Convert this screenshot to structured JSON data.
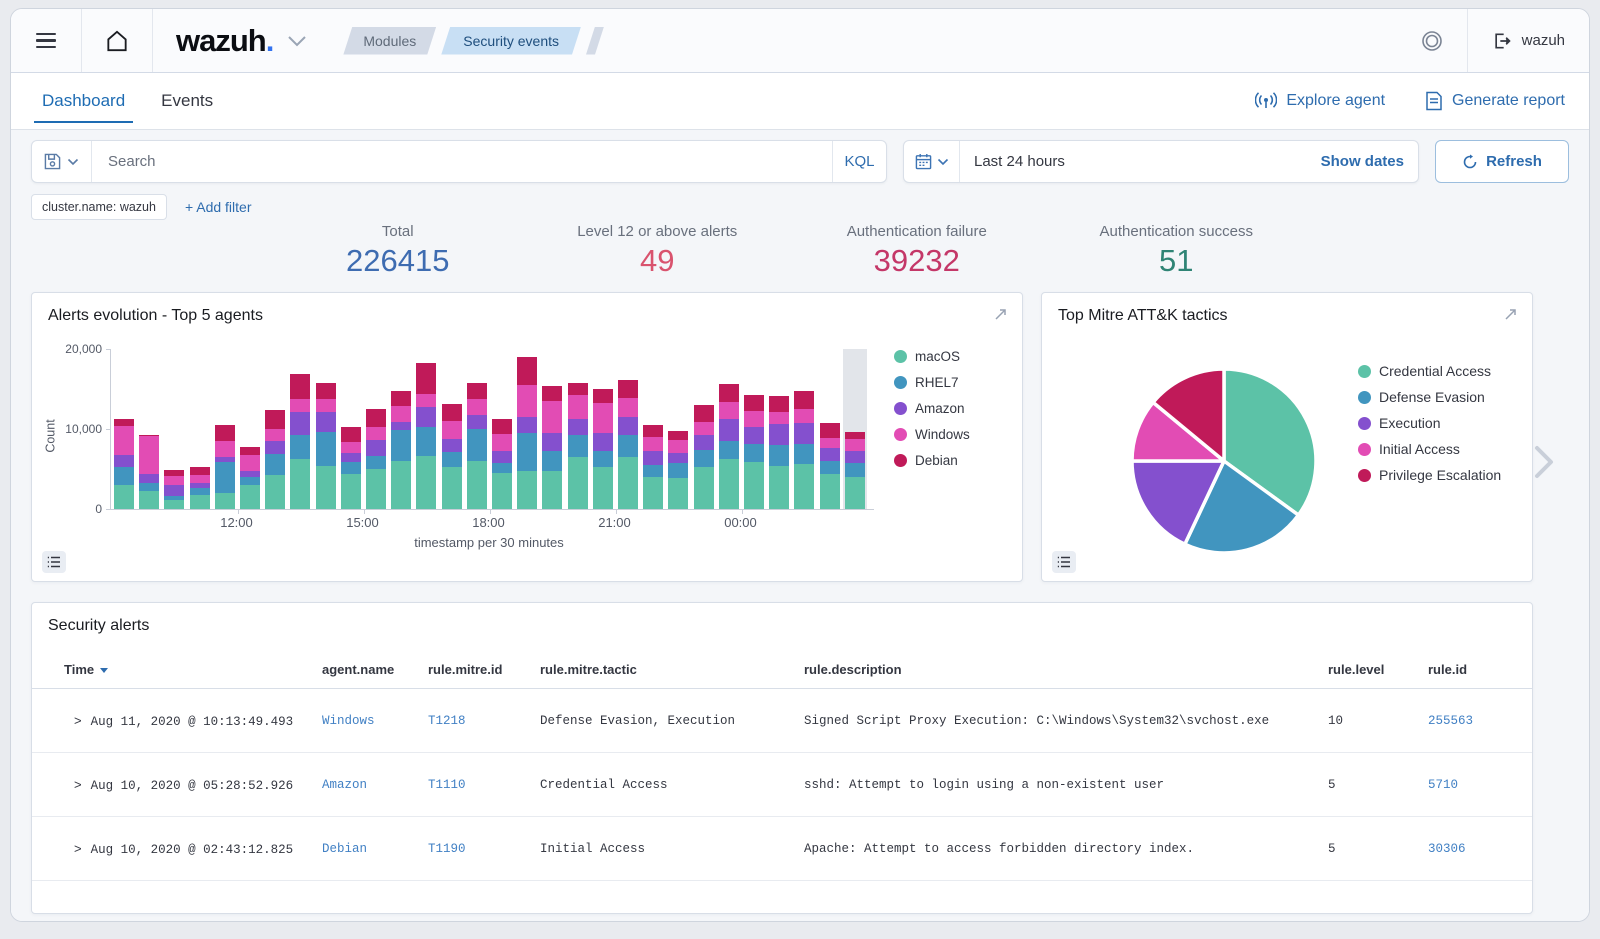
{
  "header": {
    "logo": "wazuh",
    "logo_dot": ".",
    "breadcrumbs": [
      {
        "label": "Modules"
      },
      {
        "label": "Security events"
      }
    ],
    "user": "wazuh"
  },
  "tabs": [
    {
      "label": "Dashboard"
    },
    {
      "label": "Events"
    }
  ],
  "actions": {
    "explore_agent": "Explore agent",
    "generate_report": "Generate report"
  },
  "search": {
    "placeholder": "Search",
    "kql_label": "KQL",
    "time_range": "Last 24 hours",
    "show_dates_label": "Show dates",
    "refresh_label": "Refresh"
  },
  "filters": {
    "chip": "cluster.name: wazuh",
    "add_label": "+ Add filter"
  },
  "stats": [
    {
      "label": "Total",
      "value": "226415",
      "color": "#3e6cb1"
    },
    {
      "label": "Level 12 or above alerts",
      "value": "49",
      "color": "#d9536e"
    },
    {
      "label": "Authentication failure",
      "value": "39232",
      "color": "#c43768"
    },
    {
      "label": "Authentication success",
      "value": "51",
      "color": "#2f8475"
    }
  ],
  "chart_data": [
    {
      "type": "bar",
      "title": "Alerts evolution - Top 5 agents",
      "xlabel": "timestamp per 30 minutes",
      "ylabel": "Count",
      "ylim": [
        0,
        20000
      ],
      "yticks": [
        {
          "label": "20,000",
          "value": 20000
        },
        {
          "label": "10,000",
          "value": 10000
        },
        {
          "label": "0",
          "value": 0
        }
      ],
      "xticks": [
        {
          "label": "12:00",
          "index": 5
        },
        {
          "label": "15:00",
          "index": 10
        },
        {
          "label": "18:00",
          "index": 15
        },
        {
          "label": "21:00",
          "index": 20
        },
        {
          "label": "00:00",
          "index": 25
        }
      ],
      "highlight_last_bucket": true,
      "series": [
        {
          "name": "macOS",
          "color": "#5cc2a7",
          "values": [
            3000,
            2300,
            1100,
            1700,
            2000,
            3000,
            4300,
            6300,
            5400,
            4400,
            5000,
            6000,
            6600,
            5200,
            6000,
            4500,
            4700,
            4800,
            6500,
            5200,
            6500,
            4000,
            3900,
            5200,
            6200,
            5900,
            5400,
            5600,
            4400,
            4000
          ]
        },
        {
          "name": "RHEL7",
          "color": "#4195bf",
          "values": [
            2200,
            900,
            500,
            900,
            3900,
            1000,
            2600,
            3000,
            4200,
            1500,
            1600,
            3900,
            3600,
            1900,
            4000,
            1200,
            4800,
            2500,
            2800,
            2000,
            2700,
            1500,
            1900,
            2200,
            2300,
            2200,
            2600,
            2500,
            1600,
            1700
          ]
        },
        {
          "name": "Amazon",
          "color": "#8450ce",
          "values": [
            1600,
            1200,
            1400,
            700,
            600,
            800,
            1600,
            2800,
            2500,
            1100,
            2000,
            1000,
            2500,
            1700,
            1700,
            1500,
            2000,
            2200,
            2000,
            2300,
            2300,
            1700,
            1200,
            1900,
            2800,
            2200,
            2600,
            2700,
            1600,
            1500
          ]
        },
        {
          "name": "Windows",
          "color": "#e24cb4",
          "values": [
            3600,
            4700,
            1100,
            1000,
            2000,
            2000,
            1500,
            1600,
            1600,
            1400,
            1600,
            2000,
            1700,
            2200,
            2000,
            2200,
            4000,
            4000,
            3000,
            3800,
            2400,
            1800,
            1600,
            1600,
            2100,
            1900,
            1500,
            1700,
            1300,
            1600
          ]
        },
        {
          "name": "Debian",
          "color": "#c01a59",
          "values": [
            800,
            200,
            800,
            900,
            2000,
            1000,
            2400,
            3200,
            2100,
            1900,
            2300,
            1900,
            3900,
            2100,
            2000,
            1800,
            3500,
            1900,
            1500,
            1700,
            2200,
            1500,
            1200,
            2100,
            2200,
            2100,
            2000,
            2200,
            1900,
            800
          ]
        }
      ]
    },
    {
      "type": "pie",
      "title": "Top Mitre ATT&K tactics",
      "slices": [
        {
          "name": "Credential Access",
          "color": "#5cc2a7",
          "value": 35
        },
        {
          "name": "Defense Evasion",
          "color": "#4195bf",
          "value": 22
        },
        {
          "name": "Execution",
          "color": "#8450ce",
          "value": 18
        },
        {
          "name": "Initial Access",
          "color": "#e24cb4",
          "value": 11
        },
        {
          "name": "Privilege Escalation",
          "color": "#c01a59",
          "value": 14
        }
      ]
    }
  ],
  "table": {
    "title": "Security alerts",
    "columns": [
      "Time",
      "agent.name",
      "rule.mitre.id",
      "rule.mitre.tactic",
      "rule.description",
      "rule.level",
      "rule.id"
    ],
    "rows": [
      {
        "time": "Aug 11, 2020 @ 10:13:49.493",
        "agent": "Windows",
        "mitre_id": "T1218",
        "tactic": "Defense Evasion, Execution",
        "description": "Signed Script Proxy Execution: C:\\Windows\\System32\\svchost.exe",
        "level": "10",
        "rule_id": "255563"
      },
      {
        "time": "Aug 10, 2020 @ 05:28:52.926",
        "agent": "Amazon",
        "mitre_id": "T1110",
        "tactic": "Credential Access",
        "description": "sshd: Attempt to login using a non-existent user",
        "level": "5",
        "rule_id": "5710"
      },
      {
        "time": "Aug 10, 2020 @ 02:43:12.825",
        "agent": "Debian",
        "mitre_id": "T1190",
        "tactic": "Initial Access",
        "description": "Apache: Attempt to access forbidden directory index.",
        "level": "5",
        "rule_id": "30306"
      }
    ]
  }
}
